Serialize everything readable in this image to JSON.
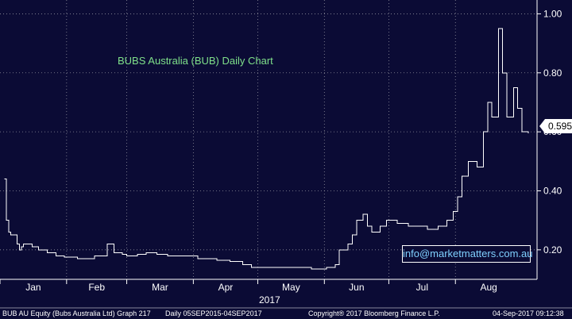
{
  "chart_data": {
    "type": "line",
    "title": "BUBS Australia (BUB) Daily Chart",
    "xlabel": "2017",
    "ylabel": "",
    "ylim": [
      0.1,
      1.02
    ],
    "y_ticks": [
      "1.00",
      "0.80",
      "0.60",
      "0.40",
      "0.20"
    ],
    "y_tick_values": [
      1.0,
      0.8,
      0.6,
      0.4,
      0.2
    ],
    "months": [
      "Jan",
      "Feb",
      "Mar",
      "Apr",
      "May",
      "Jun",
      "Jul",
      "Aug"
    ],
    "grid": true,
    "last_price": "0.595",
    "series": [
      {
        "x": [
          "2017-01-03",
          "2017-01-04",
          "2017-01-05",
          "2017-01-06",
          "2017-01-09",
          "2017-01-10",
          "2017-01-11",
          "2017-01-12",
          "2017-01-16",
          "2017-01-19",
          "2017-01-23",
          "2017-01-27",
          "2017-01-31",
          "2017-02-06",
          "2017-02-10",
          "2017-02-14",
          "2017-02-20",
          "2017-02-23",
          "2017-02-27",
          "2017-03-01",
          "2017-03-06",
          "2017-03-10",
          "2017-03-15",
          "2017-03-20",
          "2017-03-24",
          "2017-03-29",
          "2017-04-03",
          "2017-04-07",
          "2017-04-12",
          "2017-04-18",
          "2017-04-24",
          "2017-04-28",
          "2017-05-04",
          "2017-05-10",
          "2017-05-16",
          "2017-05-22",
          "2017-05-26",
          "2017-05-31",
          "2017-06-02",
          "2017-06-06",
          "2017-06-08",
          "2017-06-12",
          "2017-06-14",
          "2017-06-16",
          "2017-06-19",
          "2017-06-21",
          "2017-06-23",
          "2017-06-27",
          "2017-06-30",
          "2017-07-05",
          "2017-07-10",
          "2017-07-14",
          "2017-07-19",
          "2017-07-24",
          "2017-07-28",
          "2017-07-31",
          "2017-08-02",
          "2017-08-04",
          "2017-08-07",
          "2017-08-09",
          "2017-08-11",
          "2017-08-14",
          "2017-08-16",
          "2017-08-18",
          "2017-08-21",
          "2017-08-23",
          "2017-08-25",
          "2017-08-28",
          "2017-08-30",
          "2017-09-01",
          "2017-09-04"
        ],
        "values": [
          0.44,
          0.3,
          0.26,
          0.25,
          0.22,
          0.2,
          0.21,
          0.22,
          0.21,
          0.2,
          0.19,
          0.18,
          0.175,
          0.17,
          0.17,
          0.18,
          0.22,
          0.19,
          0.185,
          0.18,
          0.185,
          0.19,
          0.185,
          0.18,
          0.18,
          0.18,
          0.17,
          0.17,
          0.165,
          0.16,
          0.15,
          0.14,
          0.14,
          0.14,
          0.14,
          0.14,
          0.135,
          0.135,
          0.14,
          0.15,
          0.2,
          0.22,
          0.25,
          0.3,
          0.32,
          0.28,
          0.26,
          0.28,
          0.3,
          0.29,
          0.28,
          0.28,
          0.27,
          0.28,
          0.3,
          0.33,
          0.38,
          0.45,
          0.5,
          0.5,
          0.48,
          0.6,
          0.7,
          0.65,
          0.95,
          0.8,
          0.65,
          0.75,
          0.68,
          0.6,
          0.595
        ]
      }
    ]
  },
  "footer": {
    "left": "BUB AU Equity (Bubs Australia Ltd) Graph 217",
    "middle": "Daily 05SEP2015-04SEP2017",
    "copyright": "Copyright® 2017 Bloomberg Finance L.P.",
    "timestamp": "04-Sep-2017 09:12:38"
  },
  "watermark": "info@marketmatters.com.au",
  "colors": {
    "background": "#0b0b35",
    "line": "#ffffff",
    "title": "#7fe08a",
    "watermark": "#7fd0ff"
  }
}
